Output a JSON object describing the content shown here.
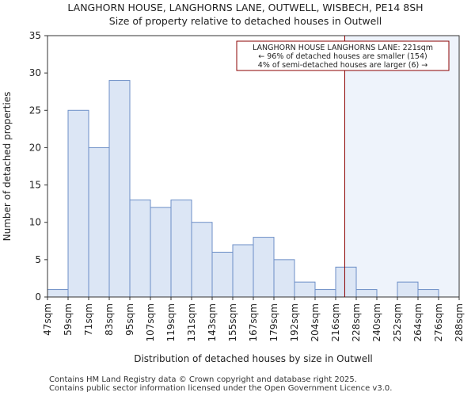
{
  "chart_data": {
    "type": "bar",
    "title": "LANGHORN HOUSE, LANGHORNS LANE, OUTWELL, WISBECH, PE14 8SH",
    "subtitle": "Size of property relative to detached houses in Outwell",
    "xlabel": "Distribution of detached houses by size in Outwell",
    "ylabel": "Number of detached properties",
    "ylim": [
      0,
      35
    ],
    "yticks": [
      0,
      5,
      10,
      15,
      20,
      25,
      30,
      35
    ],
    "bin_edges": [
      47,
      59,
      71,
      83,
      95,
      107,
      119,
      131,
      143,
      155,
      167,
      179,
      192,
      204,
      216,
      228,
      240,
      252,
      264,
      276,
      288
    ],
    "x_tick_labels": [
      "47sqm",
      "59sqm",
      "71sqm",
      "83sqm",
      "95sqm",
      "107sqm",
      "119sqm",
      "131sqm",
      "143sqm",
      "155sqm",
      "167sqm",
      "179sqm",
      "192sqm",
      "204sqm",
      "216sqm",
      "228sqm",
      "240sqm",
      "252sqm",
      "264sqm",
      "276sqm",
      "288sqm"
    ],
    "values": [
      1,
      25,
      20,
      29,
      13,
      12,
      13,
      10,
      6,
      7,
      8,
      5,
      2,
      1,
      4,
      1,
      0,
      2,
      1,
      0
    ],
    "property_size": 221,
    "annotation_lines": [
      "LANGHORN HOUSE LANGHORNS LANE: 221sqm",
      "← 96% of detached houses are smaller (154)",
      "4% of semi-detached houses are larger (6) →"
    ],
    "colors": {
      "bar_fill": "#dce6f5",
      "bar_edge": "#6d8fc7",
      "highlight_region": "#eef3fb",
      "marker_line": "#8b0000",
      "annotation_border": "#8b0000"
    }
  },
  "footer": {
    "line1": "Contains HM Land Registry data © Crown copyright and database right 2025.",
    "line2": "Contains public sector information licensed under the Open Government Licence v3.0."
  }
}
